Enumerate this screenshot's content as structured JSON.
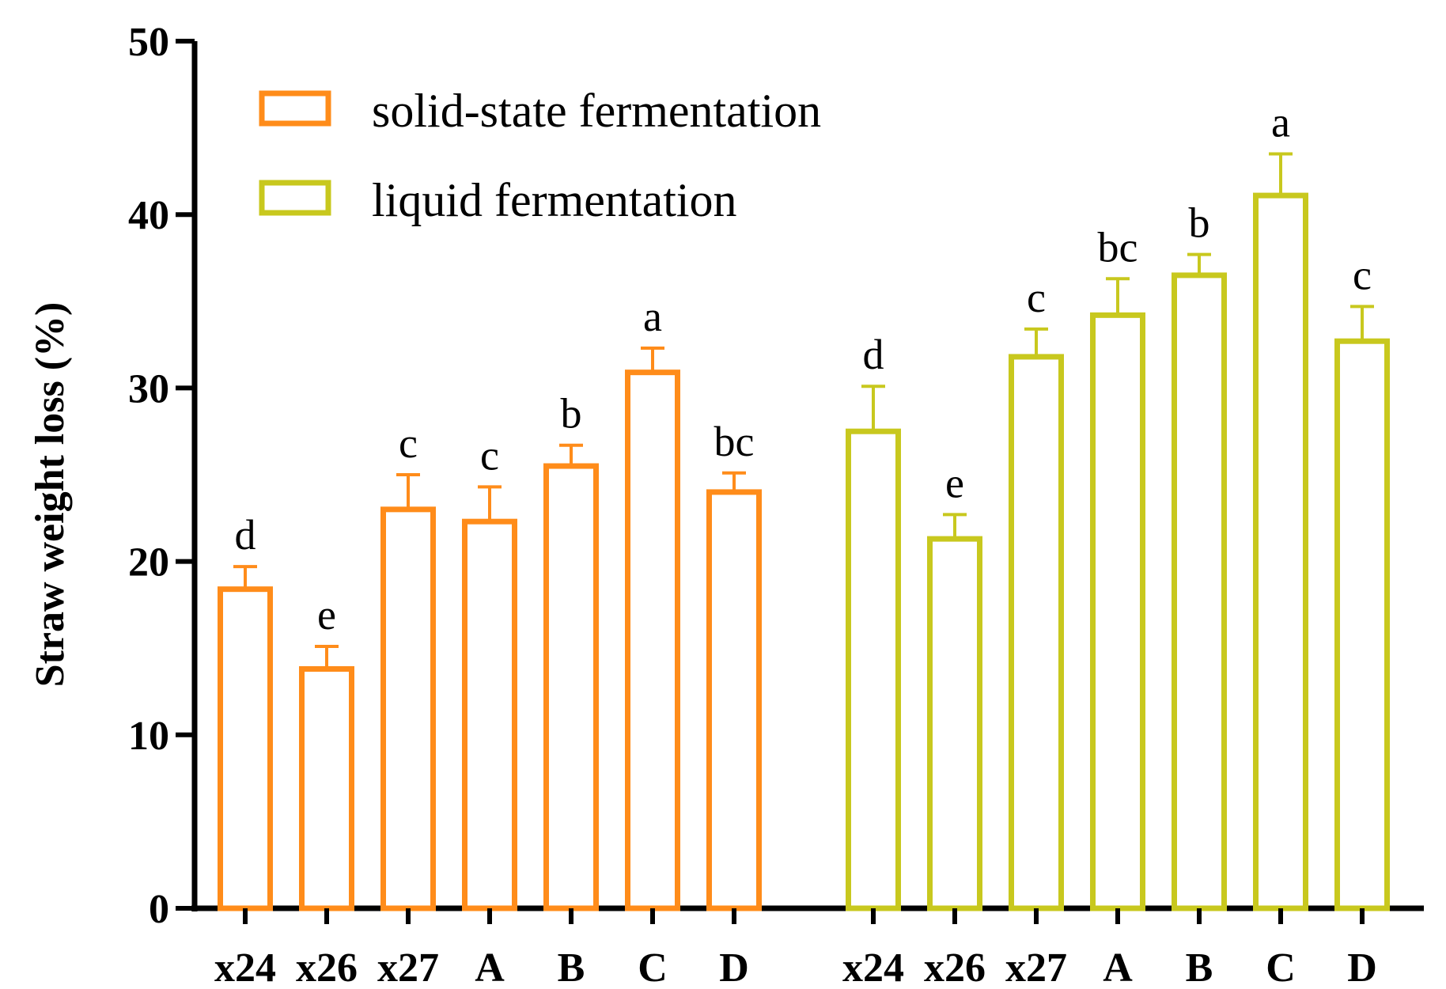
{
  "chart_data": {
    "type": "bar",
    "ylabel": "Straw weight loss (%)",
    "xlabel": "",
    "ylim": [
      0,
      50
    ],
    "yticks": [
      "0",
      "10",
      "20",
      "30",
      "40",
      "50"
    ],
    "grid": false,
    "legend_position": "top-left",
    "groups": [
      {
        "name": "solid-state fermentation",
        "color": "#FF8C1A",
        "categories": [
          "x24",
          "x26",
          "x27",
          "A",
          "B",
          "C",
          "D"
        ],
        "values": [
          18.4,
          13.8,
          23.0,
          22.3,
          25.5,
          30.9,
          24.0
        ],
        "errors": [
          1.3,
          1.3,
          2.0,
          2.0,
          1.2,
          1.4,
          1.1
        ],
        "letters": [
          "d",
          "e",
          "c",
          "c",
          "b",
          "a",
          "bc"
        ]
      },
      {
        "name": "liquid fermentation",
        "color": "#C8C81E",
        "categories": [
          "x24",
          "x26",
          "x27",
          "A",
          "B",
          "C",
          "D"
        ],
        "values": [
          27.5,
          21.3,
          31.8,
          34.2,
          36.5,
          41.1,
          32.7
        ],
        "errors": [
          2.6,
          1.4,
          1.6,
          2.1,
          1.2,
          2.4,
          2.0
        ],
        "letters": [
          "d",
          "e",
          "c",
          "bc",
          "b",
          "a",
          "c"
        ]
      }
    ]
  }
}
